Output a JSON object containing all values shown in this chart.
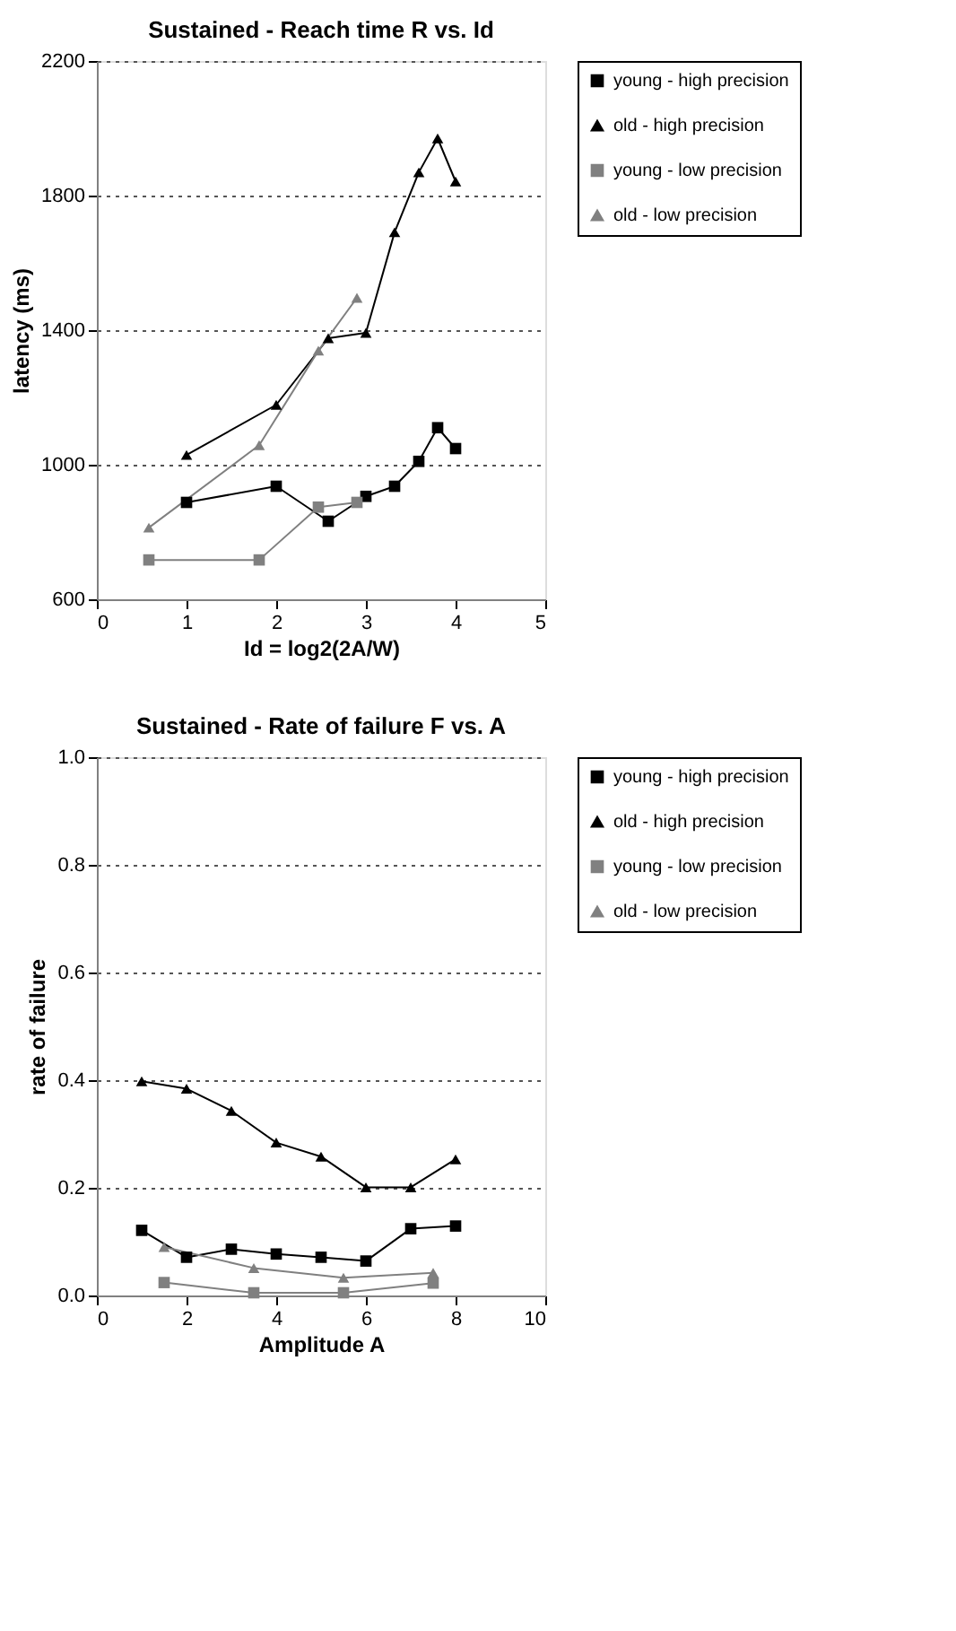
{
  "chart_data": [
    {
      "type": "line",
      "title": "Sustained - Reach time R vs. Id",
      "xlabel": "Id = log2(2A/W)",
      "ylabel": "latency (ms)",
      "xlim": [
        0,
        5
      ],
      "xticks": [
        0,
        1,
        2,
        3,
        4,
        5
      ],
      "ylim": [
        600,
        2200
      ],
      "yticks": [
        600,
        1000,
        1400,
        1800,
        2200
      ],
      "grid": "y",
      "legend": "right",
      "line_style": "solid",
      "series": [
        {
          "name": "young - high precision",
          "color": "#000000",
          "marker": "square",
          "x": [
            1,
            2,
            2.58,
            3,
            3.32,
            3.59,
            3.8,
            4
          ],
          "values": [
            888,
            936,
            832,
            906,
            936,
            1010,
            1110,
            1048
          ]
        },
        {
          "name": "old - high precision",
          "color": "#000000",
          "marker": "triangle",
          "x": [
            1,
            2,
            2.58,
            3,
            3.32,
            3.59,
            3.8,
            4
          ],
          "values": [
            1029,
            1178,
            1376,
            1392,
            1691,
            1869,
            1970,
            1842
          ]
        },
        {
          "name": "young - low precision",
          "color": "#808080",
          "marker": "square",
          "x": [
            0.58,
            1.81,
            2.47,
            2.9
          ],
          "values": [
            717,
            717,
            874,
            888
          ]
        },
        {
          "name": "old - low precision",
          "color": "#808080",
          "marker": "triangle",
          "x": [
            0.58,
            1.81,
            2.47,
            2.9
          ],
          "values": [
            813,
            1058,
            1339,
            1496
          ]
        }
      ]
    },
    {
      "type": "line",
      "title": "Sustained - Rate of failure F vs. A",
      "xlabel": "Amplitude A",
      "ylabel": "rate of failure",
      "xlim": [
        0,
        10
      ],
      "xticks": [
        0,
        2,
        4,
        6,
        8,
        10
      ],
      "ylim": [
        0,
        1
      ],
      "yticks": [
        {
          "value": 0,
          "label": "0.0"
        },
        {
          "value": 0.2,
          "label": "0.2"
        },
        {
          "value": 0.4,
          "label": "0.4"
        },
        {
          "value": 0.6,
          "label": "0.6"
        },
        {
          "value": 0.8,
          "label": "0.8"
        },
        {
          "value": 1,
          "label": "1.0"
        }
      ],
      "grid": "y",
      "legend": "right",
      "line_style": "solid",
      "series": [
        {
          "name": "young - high precision",
          "color": "#000000",
          "marker": "square",
          "x": [
            1,
            2,
            3,
            4,
            5,
            6,
            7,
            8
          ],
          "values": [
            0.121,
            0.071,
            0.086,
            0.077,
            0.071,
            0.064,
            0.124,
            0.129
          ]
        },
        {
          "name": "old - high precision",
          "color": "#000000",
          "marker": "triangle",
          "x": [
            1,
            2,
            3,
            4,
            5,
            6,
            7,
            8
          ],
          "values": [
            0.398,
            0.384,
            0.343,
            0.284,
            0.258,
            0.201,
            0.201,
            0.253
          ]
        },
        {
          "name": "young - low precision",
          "color": "#808080",
          "marker": "square",
          "x": [
            1.5,
            3.5,
            5.5,
            7.5
          ],
          "values": [
            0.024,
            0.005,
            0.005,
            0.023
          ]
        },
        {
          "name": "old - low precision",
          "color": "#808080",
          "marker": "triangle",
          "x": [
            1.5,
            3.5,
            5.5,
            7.5
          ],
          "values": [
            0.09,
            0.051,
            0.033,
            0.042
          ]
        }
      ]
    }
  ]
}
